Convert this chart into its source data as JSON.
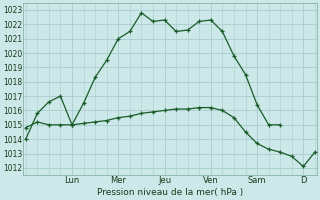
{
  "background_color": "#cce8e8",
  "grid_color": "#aacccc",
  "line_color": "#1a5c2a",
  "title": "Pression niveau de la mer( hPa )",
  "ylim": [
    1011.5,
    1023.5
  ],
  "yticks": [
    1012,
    1013,
    1014,
    1015,
    1016,
    1017,
    1018,
    1019,
    1020,
    1021,
    1022,
    1023
  ],
  "day_labels": [
    "Lun",
    "Mer",
    "Jeu",
    "Ven",
    "Sam",
    "D"
  ],
  "day_positions": [
    1.0,
    2.0,
    3.0,
    4.0,
    5.0,
    6.0
  ],
  "xlim": [
    -0.05,
    6.3
  ],
  "line1_x": [
    0.0,
    0.25,
    0.5,
    0.75,
    1.0,
    1.25,
    1.5,
    1.75,
    2.0,
    2.25,
    2.5,
    2.75,
    3.0,
    3.25,
    3.5,
    3.75,
    4.0,
    4.25,
    4.5,
    4.75,
    5.0,
    5.25,
    5.5
  ],
  "line1_y": [
    1014.0,
    1015.8,
    1016.6,
    1017.0,
    1015.0,
    1016.5,
    1018.3,
    1019.5,
    1021.0,
    1021.5,
    1022.8,
    1022.2,
    1022.3,
    1021.5,
    1021.6,
    1022.2,
    1022.3,
    1021.5,
    1019.8,
    1018.5,
    1016.4,
    1015.0,
    1015.0
  ],
  "line2_x": [
    0.0,
    0.25,
    0.5,
    0.75,
    1.0,
    1.25,
    1.5,
    1.75,
    2.0,
    2.25,
    2.5,
    2.75,
    3.0,
    3.25,
    3.5,
    3.75,
    4.0,
    4.25,
    4.5,
    4.75,
    5.0,
    5.25,
    5.5,
    5.75,
    6.0,
    6.25
  ],
  "line2_y": [
    1014.8,
    1015.2,
    1015.0,
    1015.0,
    1015.0,
    1015.1,
    1015.2,
    1015.3,
    1015.5,
    1015.6,
    1015.8,
    1015.9,
    1016.0,
    1016.1,
    1016.1,
    1016.2,
    1016.2,
    1016.0,
    1015.5,
    1014.5,
    1013.7,
    1013.3,
    1013.1,
    1012.8,
    1012.1,
    1013.1
  ]
}
